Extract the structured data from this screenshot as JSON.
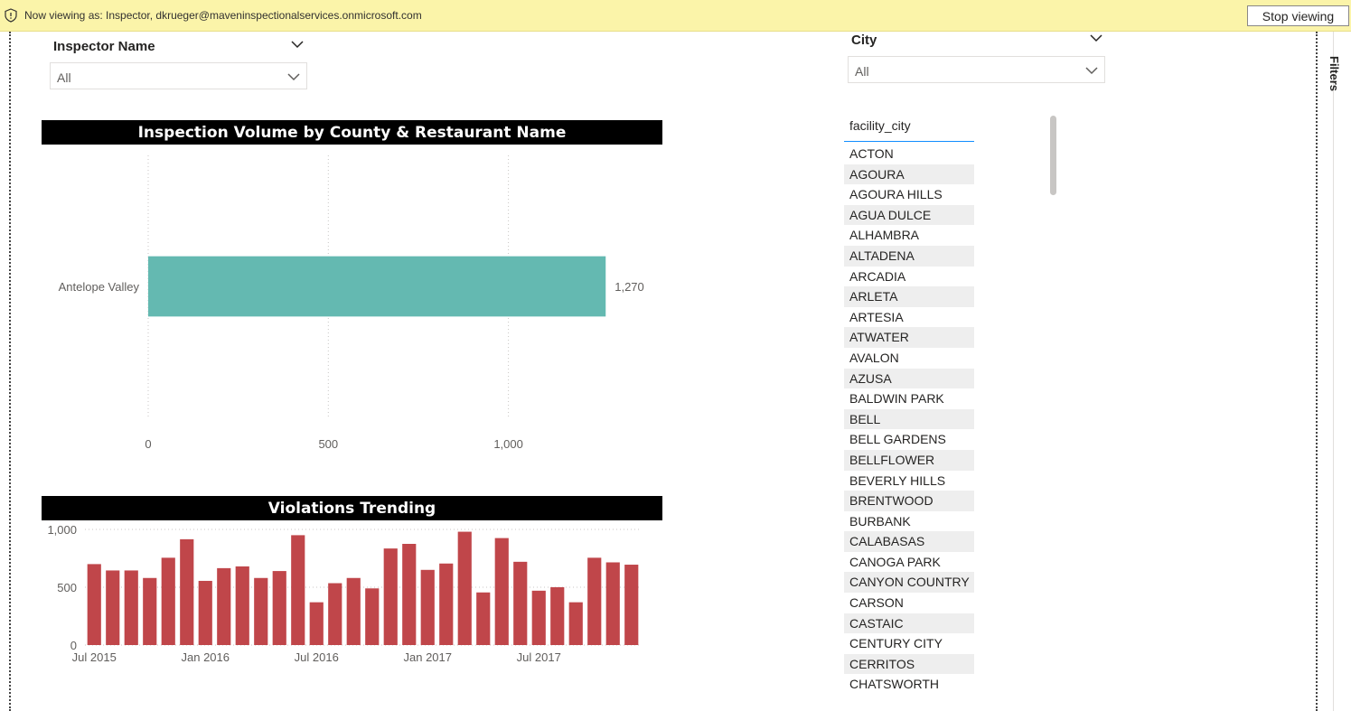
{
  "banner": {
    "text": "Now viewing as: Inspector, dkrueger@maveninspectionalservices.onmicrosoft.com",
    "stop_button": "Stop viewing"
  },
  "slicers": {
    "inspector": {
      "title": "Inspector Name",
      "value": "All"
    },
    "city": {
      "title": "City",
      "value": "All"
    }
  },
  "city_table": {
    "header": "facility_city",
    "rows": [
      "ACTON",
      "AGOURA",
      "AGOURA HILLS",
      "AGUA DULCE",
      "ALHAMBRA",
      "ALTADENA",
      "ARCADIA",
      "ARLETA",
      "ARTESIA",
      "ATWATER",
      "AVALON",
      "AZUSA",
      "BALDWIN PARK",
      "BELL",
      "BELL GARDENS",
      "BELLFLOWER",
      "BEVERLY HILLS",
      "BRENTWOOD",
      "BURBANK",
      "CALABASAS",
      "CANOGA PARK",
      "CANYON COUNTRY",
      "CARSON",
      "CASTAIC",
      "CENTURY CITY",
      "CERRITOS",
      "CHATSWORTH"
    ]
  },
  "side_pane": {
    "label": "Filters"
  },
  "colors": {
    "bar_teal": "#64b9b1",
    "bar_red": "#c0464a"
  },
  "chart_data": [
    {
      "type": "bar",
      "orientation": "horizontal",
      "title": "Inspection Volume by County & Restaurant Name",
      "categories": [
        "Antelope Valley"
      ],
      "values": [
        1270
      ],
      "data_labels": [
        "1,270"
      ],
      "xticks": [
        0,
        500,
        1000
      ],
      "xtick_labels": [
        "0",
        "500",
        "1,000"
      ],
      "xlim": [
        0,
        1440
      ],
      "grid": true
    },
    {
      "type": "bar",
      "title": "Violations Trending",
      "x": [
        "2015-07",
        "2015-08",
        "2015-09",
        "2015-10",
        "2015-11",
        "2015-12",
        "2016-01",
        "2016-02",
        "2016-03",
        "2016-04",
        "2016-05",
        "2016-06",
        "2016-07",
        "2016-08",
        "2016-09",
        "2016-10",
        "2016-11",
        "2016-12",
        "2017-01",
        "2017-02",
        "2017-03",
        "2017-04",
        "2017-05",
        "2017-06",
        "2017-07",
        "2017-08",
        "2017-09",
        "2017-10",
        "2017-11",
        "2017-12"
      ],
      "values": [
        700,
        645,
        645,
        580,
        755,
        915,
        555,
        665,
        680,
        580,
        640,
        950,
        370,
        535,
        580,
        490,
        835,
        875,
        650,
        705,
        980,
        455,
        925,
        720,
        470,
        500,
        370,
        755,
        715,
        695
      ],
      "yticks": [
        0,
        500,
        1000
      ],
      "ytick_labels": [
        "0",
        "500",
        "1,000"
      ],
      "ylim": [
        0,
        1000
      ],
      "xtick_labels": [
        "Jul 2015",
        "Jan 2016",
        "Jul 2016",
        "Jan 2017",
        "Jul 2017"
      ],
      "xtick_positions": [
        "2015-07",
        "2016-01",
        "2016-07",
        "2017-01",
        "2017-07"
      ]
    }
  ]
}
